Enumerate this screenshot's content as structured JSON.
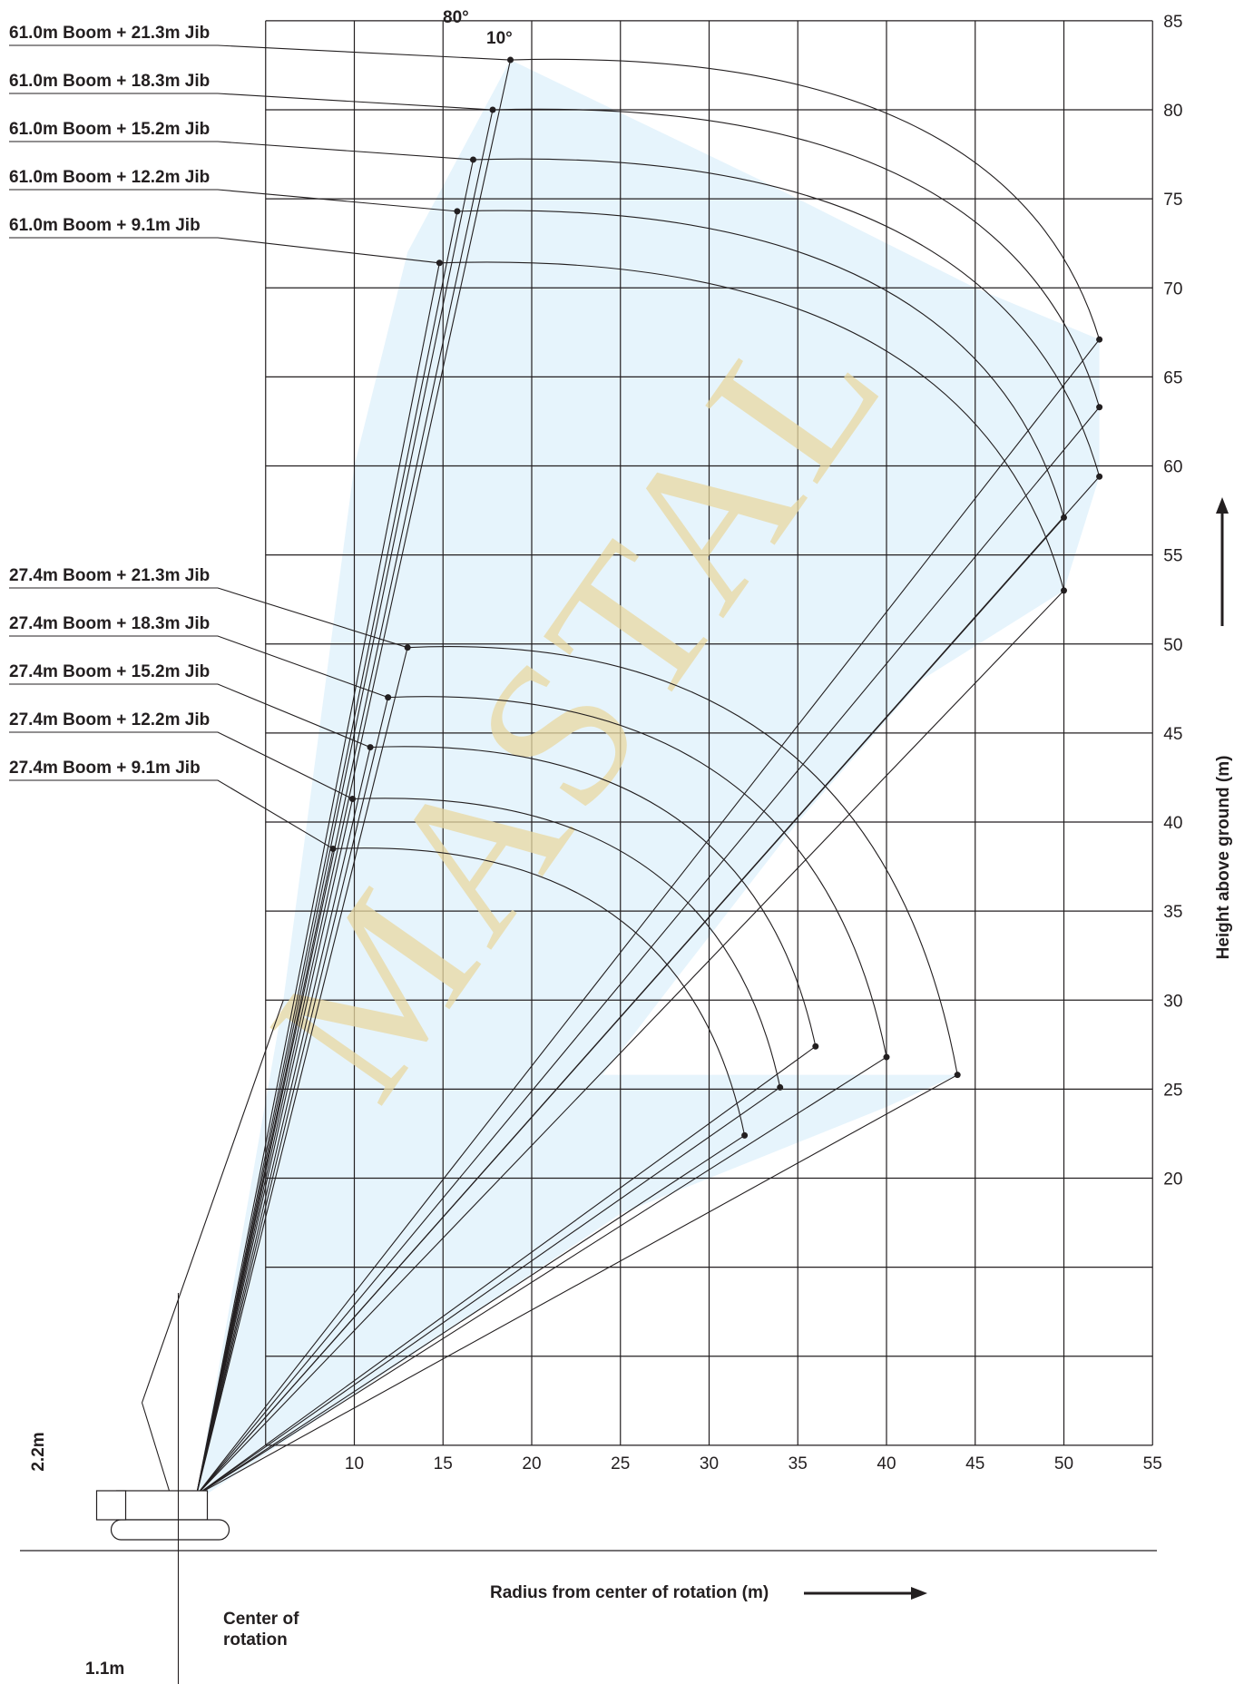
{
  "chart_data": {
    "type": "line",
    "xlabel": "Radius from center of rotation (m)",
    "ylabel": "Height above ground (m)",
    "xlim": [
      0,
      55
    ],
    "ylim": [
      0,
      85
    ],
    "x_ticks": [
      "10",
      "15",
      "20",
      "25",
      "30",
      "35",
      "40",
      "45",
      "50",
      "55"
    ],
    "y_ticks": [
      "20",
      "25",
      "30",
      "35",
      "40",
      "45",
      "50",
      "55",
      "60",
      "65",
      "70",
      "75",
      "80",
      "85"
    ],
    "offset_angle_labels": [
      "80°",
      "10°"
    ],
    "watermark": "MASTAL",
    "colors": {
      "envelope": "#e6f4fc",
      "lines": "#231f20",
      "watermark": "#e9d9a2"
    },
    "series": [
      {
        "name": "61.0m Boom + 21.3m Jib",
        "tip_max_angle": [
          18.8,
          82.8
        ],
        "tip_min_angle": [
          52.0,
          67.1
        ]
      },
      {
        "name": "61.0m Boom + 18.3m Jib",
        "tip_max_angle": [
          17.8,
          80.0
        ],
        "tip_min_angle": [
          52.0,
          63.3
        ]
      },
      {
        "name": "61.0m Boom + 15.2m Jib",
        "tip_max_angle": [
          16.7,
          77.2
        ],
        "tip_min_angle": [
          52.0,
          59.4
        ]
      },
      {
        "name": "61.0m Boom + 12.2m Jib",
        "tip_max_angle": [
          15.8,
          74.3
        ],
        "tip_min_angle": [
          50.0,
          57.1
        ]
      },
      {
        "name": "61.0m Boom + 9.1m Jib",
        "tip_max_angle": [
          14.8,
          71.4
        ],
        "tip_min_angle": [
          50.0,
          53.0
        ]
      },
      {
        "name": "27.4m Boom + 21.3m Jib",
        "tip_max_angle": [
          13.0,
          49.8
        ],
        "tip_min_angle": [
          44.0,
          25.8
        ]
      },
      {
        "name": "27.4m Boom + 18.3m Jib",
        "tip_max_angle": [
          11.9,
          47.0
        ],
        "tip_min_angle": [
          40.0,
          26.8
        ]
      },
      {
        "name": "27.4m Boom + 15.2m Jib",
        "tip_max_angle": [
          10.9,
          44.2
        ],
        "tip_min_angle": [
          36.0,
          27.4
        ]
      },
      {
        "name": "27.4m Boom + 12.2m Jib",
        "tip_max_angle": [
          9.9,
          41.3
        ],
        "tip_min_angle": [
          34.0,
          25.1
        ]
      },
      {
        "name": "27.4m Boom + 9.1m Jib",
        "tip_max_angle": [
          8.8,
          38.5
        ],
        "tip_min_angle": [
          32.0,
          22.4
        ]
      }
    ],
    "dimensions": {
      "boom_foot_height": "2.2m",
      "boom_foot_offset": "1.1m",
      "center_label": "Center of rotation"
    }
  }
}
